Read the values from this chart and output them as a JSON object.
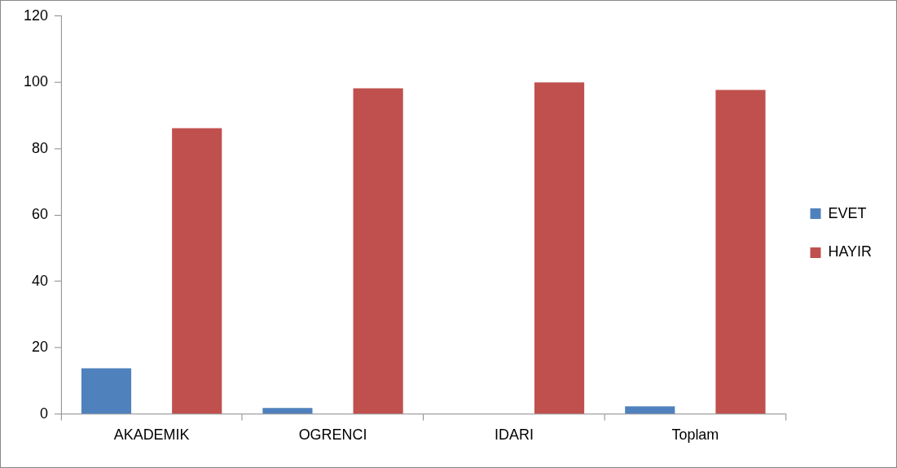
{
  "chart_data": {
    "type": "bar",
    "categories": [
      "AKADEMIK",
      "OGRENCI",
      "IDARI",
      "Toplam"
    ],
    "series": [
      {
        "name": "EVET",
        "color": "#4f81bd",
        "values": [
          13.8,
          1.8,
          0,
          2.3
        ]
      },
      {
        "name": "HAYIR",
        "color": "#c0504d",
        "values": [
          86.2,
          98.2,
          100,
          97.7
        ]
      }
    ],
    "ylim": [
      0,
      120
    ],
    "yticks": [
      0,
      20,
      40,
      60,
      80,
      100,
      120
    ],
    "legend": "right"
  }
}
